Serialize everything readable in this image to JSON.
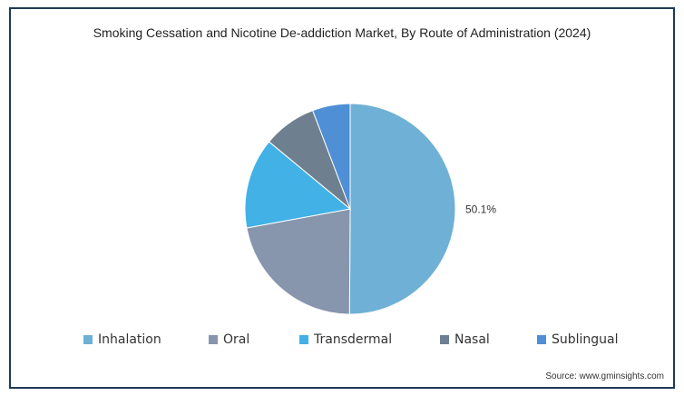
{
  "chart_data": {
    "type": "pie",
    "title": "Smoking Cessation and Nicotine De-addiction Market, By Route of Administration (2024)",
    "slices": [
      {
        "label": "Inhalation",
        "value": 50.1,
        "color": "#6fb0d6",
        "data_label": "50.1%"
      },
      {
        "label": "Oral",
        "value": 22.0,
        "color": "#8795ad",
        "data_label": ""
      },
      {
        "label": "Transdermal",
        "value": 13.9,
        "color": "#41b1e6",
        "data_label": ""
      },
      {
        "label": "Nasal",
        "value": 8.2,
        "color": "#6e7f90",
        "data_label": ""
      },
      {
        "label": "Sublingual",
        "value": 5.8,
        "color": "#4f8fd6",
        "data_label": ""
      }
    ],
    "start": "12 o'clock",
    "direction": "clockwise",
    "legend_position": "bottom"
  },
  "source": "Source: www.gminsights.com"
}
